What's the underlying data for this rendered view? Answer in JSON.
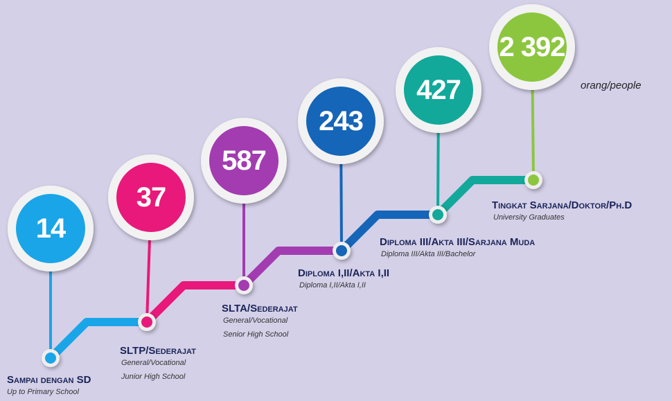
{
  "unit": "orang/people",
  "levels": [
    {
      "value": "14",
      "title": "Sampai dengan SD",
      "subtitle": [
        "Up to Primary School"
      ]
    },
    {
      "value": "37",
      "title": "SLTP/Sederajat",
      "subtitle": [
        "General/Vocational",
        "Junior High School"
      ]
    },
    {
      "value": "587",
      "title": "SLTA/Sederajat",
      "subtitle": [
        "General/Vocational",
        "Senior High School"
      ]
    },
    {
      "value": "243",
      "title": "Diploma I,II/Akta I,II",
      "subtitle": [
        "Diploma I,II/Akta I,II"
      ]
    },
    {
      "value": "427",
      "title": "Diploma III/Akta III/Sarjana Muda",
      "subtitle": [
        "Diploma III/Akta III/Bachelor"
      ]
    },
    {
      "value": "2 392",
      "title": "Tingkat Sarjana/Doktor/Ph.D",
      "subtitle": [
        "University Graduates"
      ]
    }
  ]
}
